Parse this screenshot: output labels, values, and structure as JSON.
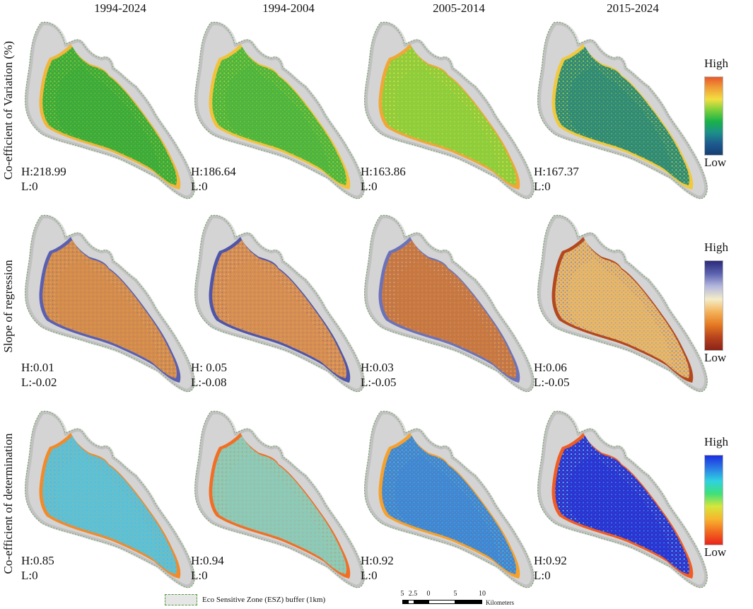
{
  "columns": [
    "1994-2024",
    "1994-2004",
    "2005-2014",
    "2015-2024"
  ],
  "rows": [
    {
      "label": "Co-efficient of Variation (%)",
      "legend_high": "High",
      "legend_low": "Low",
      "gradient": [
        "#e8582b",
        "#f0a137",
        "#f2df40",
        "#79cf3b",
        "#19b24a",
        "#1d8f8a",
        "#1d5a8f",
        "#173f72"
      ],
      "stats": [
        {
          "h": "H:218.99",
          "l": "L:0"
        },
        {
          "h": "H:186.64",
          "l": "L:0"
        },
        {
          "h": "H:163.86",
          "l": "L:0"
        },
        {
          "h": "H:167.37",
          "l": "L:0"
        }
      ],
      "fills": [
        {
          "inner": "#3aab3a",
          "mid": "#8ccf3b",
          "rim": "#f1b63a"
        },
        {
          "inner": "#4cb53e",
          "mid": "#a3d43e",
          "rim": "#f3c23b"
        },
        {
          "inner": "#8cce3c",
          "mid": "#e3df44",
          "rim": "#f0a737"
        },
        {
          "inner": "#2e8a77",
          "mid": "#a8d343",
          "rim": "#f1c93e"
        }
      ]
    },
    {
      "label": "Slope of regression",
      "legend_high": "High",
      "legend_low": "Low",
      "gradient": [
        "#2a2a7a",
        "#5d63b0",
        "#b5b8de",
        "#f3edc8",
        "#f4b25a",
        "#e57a22",
        "#b7431e",
        "#8a2318"
      ],
      "stats": [
        {
          "h": "H:0.01",
          "l": "L:-0.02"
        },
        {
          "h": "H: 0.05",
          "l": "L:-0.08"
        },
        {
          "h": "H:0.03",
          "l": "L:-0.05"
        },
        {
          "h": "H:0.06",
          "l": "L:-0.05"
        }
      ],
      "fills": [
        {
          "inner": "#d58d4a",
          "mid": "#e0a46a",
          "rim": "#5a5fb0"
        },
        {
          "inner": "#d78e50",
          "mid": "#e3aa72",
          "rim": "#4f55a8"
        },
        {
          "inner": "#c9783f",
          "mid": "#dba070",
          "rim": "#6c72b8"
        },
        {
          "inner": "#e6b86a",
          "mid": "#8388c6",
          "rim": "#b3481f"
        }
      ]
    },
    {
      "label": "Co-efficient of determination",
      "legend_high": "High",
      "legend_low": "Low",
      "gradient": [
        "#1c2ee0",
        "#2a7de6",
        "#2fd2e0",
        "#3fe07a",
        "#d6e63a",
        "#f7b52e",
        "#f26a20",
        "#e8231b"
      ],
      "stats": [
        {
          "h": "H:0.85",
          "l": "L:0"
        },
        {
          "h": "H:0.94",
          "l": "L:0"
        },
        {
          "h": "H:0.92",
          "l": "L:0"
        },
        {
          "h": "H:0.92",
          "l": "L:0"
        }
      ],
      "fills": [
        {
          "inner": "#5fc1d4",
          "mid": "#53b5d8",
          "rim": "#f28a2a"
        },
        {
          "inner": "#8cc9b8",
          "mid": "#9ad0a8",
          "rim": "#f26e24"
        },
        {
          "inner": "#3f86d4",
          "mid": "#4fb8dc",
          "rim": "#f6a12c"
        },
        {
          "inner": "#2634d6",
          "mid": "#63c7e0",
          "rim": "#f05c22"
        }
      ]
    }
  ],
  "esz_legend": "Eco Sensitive Zone (ESZ) buffer (1km)",
  "scale_bar": {
    "ticks": [
      "5",
      "2.5",
      "0",
      "5",
      "10"
    ],
    "unit": "Kilometers"
  },
  "colors": {
    "hillshade": "#d4d4d4",
    "hillshade_dark": "#9e9e9e",
    "esz_border": "#4e9a3c"
  }
}
